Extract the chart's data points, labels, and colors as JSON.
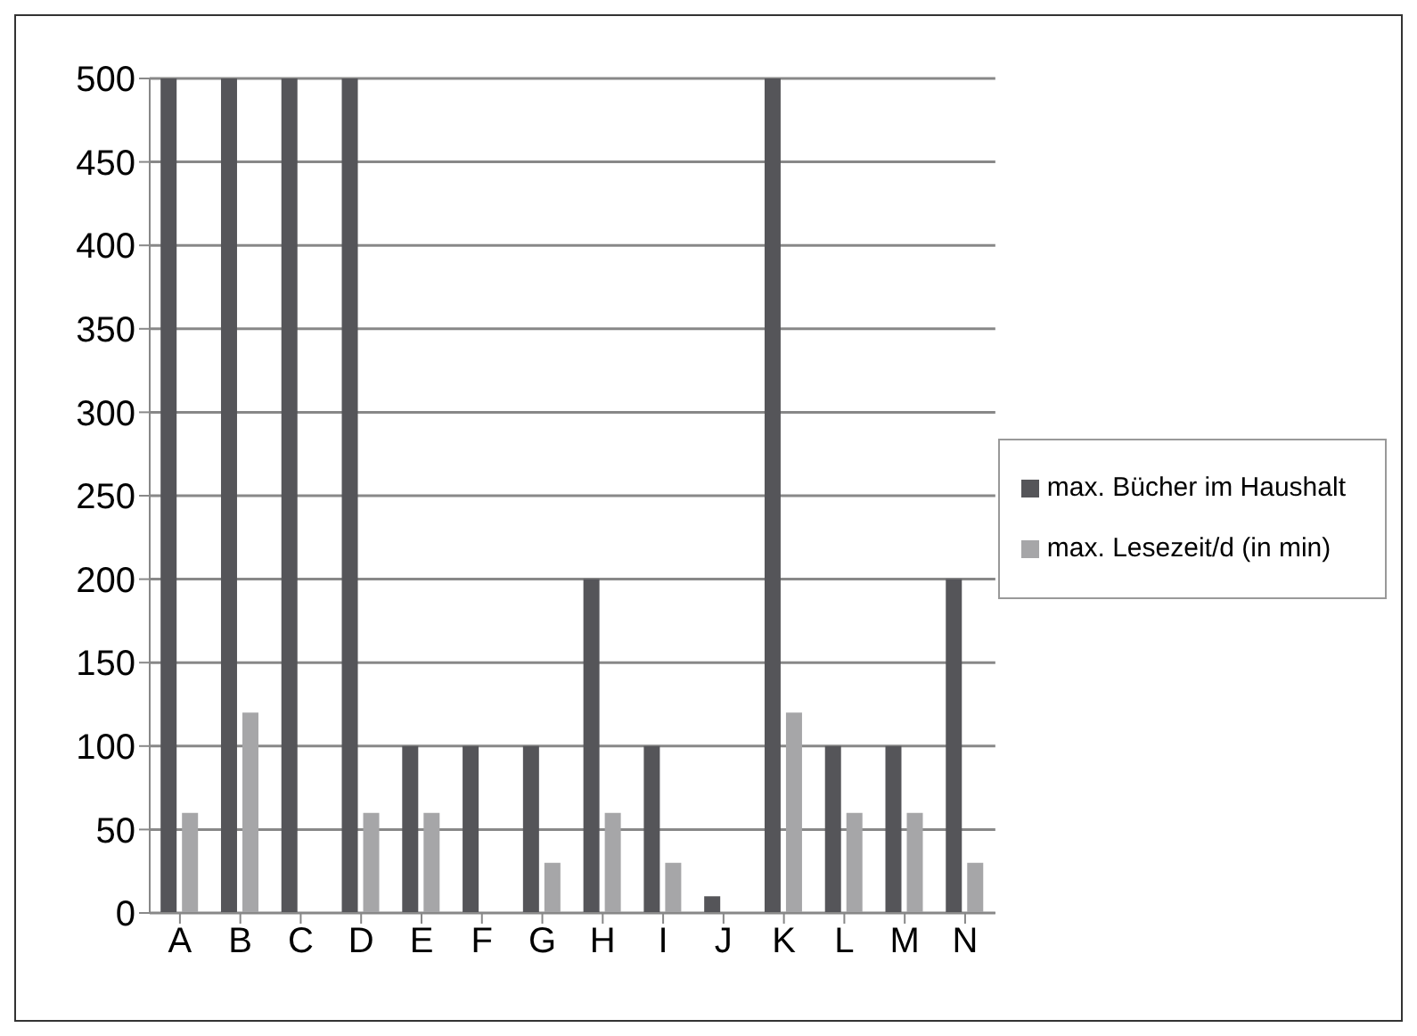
{
  "chart_data": {
    "type": "bar",
    "categories": [
      "A",
      "B",
      "C",
      "D",
      "E",
      "F",
      "G",
      "H",
      "I",
      "J",
      "K",
      "L",
      "M",
      "N"
    ],
    "series": [
      {
        "name": "max. Bücher im Haushalt",
        "color": "#555559",
        "values": [
          500,
          500,
          500,
          500,
          100,
          100,
          100,
          200,
          100,
          10,
          500,
          100,
          100,
          200
        ]
      },
      {
        "name": "max. Lesezeit/d (in min)",
        "color": "#a6a6a8",
        "values": [
          60,
          120,
          null,
          60,
          60,
          null,
          30,
          60,
          30,
          null,
          120,
          60,
          60,
          30
        ]
      }
    ],
    "ylim": [
      0,
      500
    ],
    "yticks": [
      0,
      50,
      100,
      150,
      200,
      250,
      300,
      350,
      400,
      450,
      500
    ],
    "grid": "y",
    "legend": "right"
  }
}
